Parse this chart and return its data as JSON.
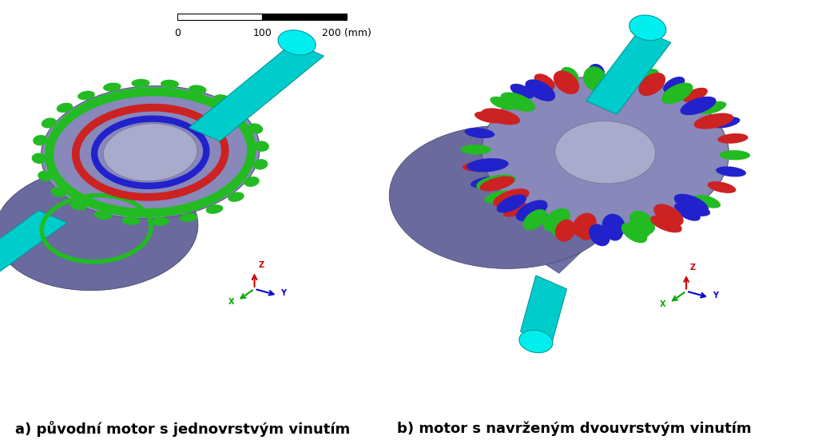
{
  "background_color": "#ffffff",
  "label_a": "a) původní motor s jednovrstvým vinutím",
  "label_b": "b) motor s navrženým dvouvrstvým vinutím",
  "label_fontsize": 13,
  "label_fontweight": "bold",
  "scalebar_label_0": "0",
  "scalebar_label_100": "100",
  "scalebar_label_200": "200 (mm)",
  "figsize": [
    10.24,
    5.61
  ],
  "dpi": 100,
  "winding_green": "#22bb22",
  "winding_red": "#cc2222",
  "winding_blue": "#2222cc",
  "axis_x_color": "#00aa00",
  "axis_y_color": "#0000cc",
  "axis_z_color": "#cc0000"
}
